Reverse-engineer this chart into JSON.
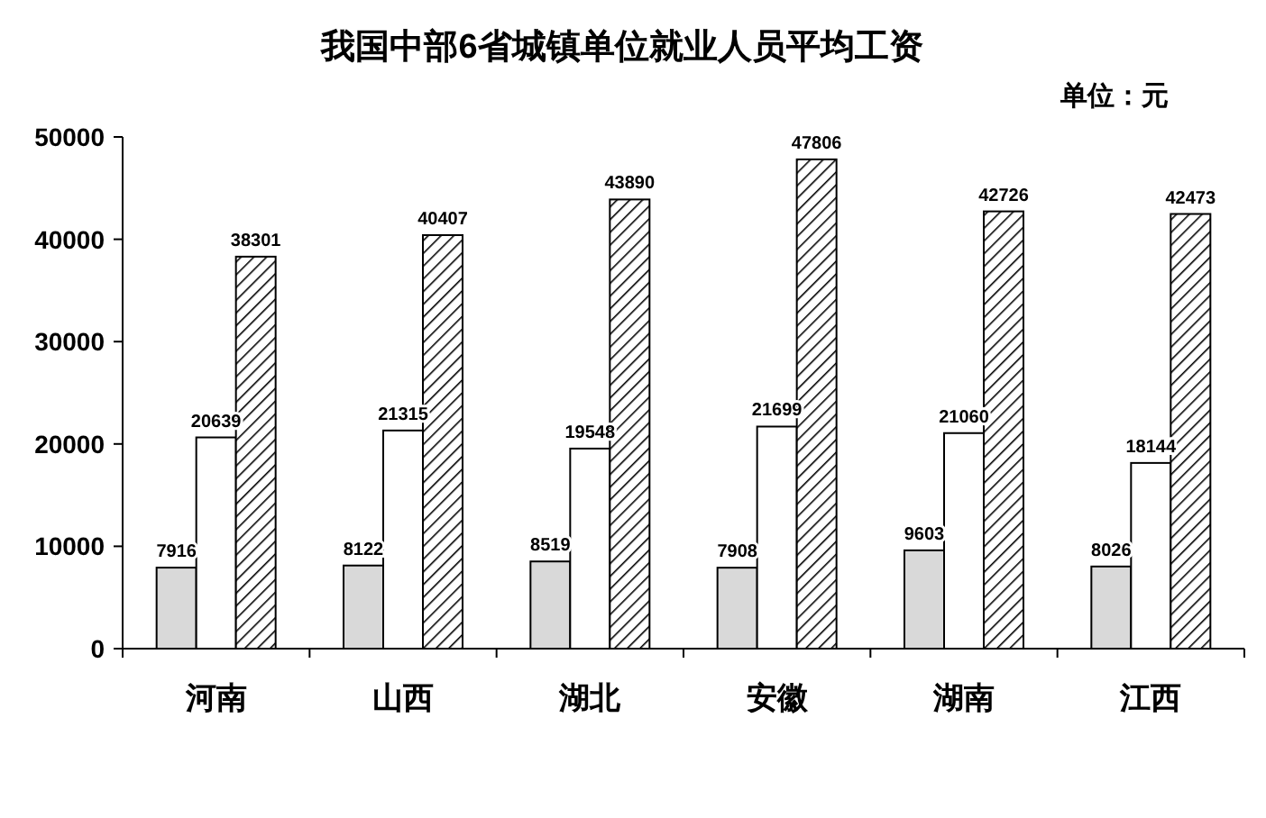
{
  "chart_data": {
    "type": "bar",
    "title": "我国中部6省城镇单位就业人员平均工资",
    "annotations": [
      "单位：元"
    ],
    "categories": [
      "河南",
      "山西",
      "湖北",
      "安徽",
      "湖南",
      "江西"
    ],
    "series": [
      {
        "color": "#d9d9d9",
        "values": [
          7916,
          8122,
          8519,
          7908,
          9603,
          8026
        ]
      },
      {
        "color": "#ffffff",
        "values": [
          20639,
          21315,
          19548,
          21699,
          21060,
          18144
        ]
      },
      {
        "color": "#000000",
        "values": [
          38301,
          40407,
          43890,
          47806,
          42726,
          42473
        ]
      }
    ],
    "ylim": [
      0,
      50000
    ],
    "yticks": [
      0,
      10000,
      20000,
      30000,
      40000,
      50000
    ],
    "data_labels": true
  }
}
